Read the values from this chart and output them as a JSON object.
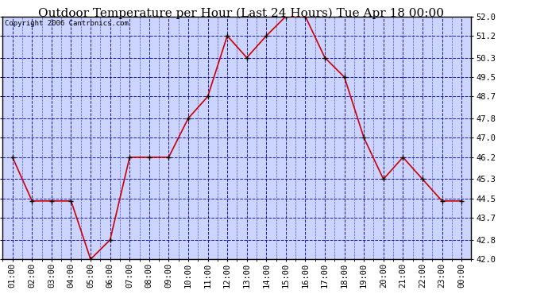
{
  "title": "Outdoor Temperature per Hour (Last 24 Hours) Tue Apr 18 00:00",
  "copyright_text": "Copyright 2006 Cantronics.com",
  "x_labels": [
    "01:00",
    "02:00",
    "03:00",
    "04:00",
    "05:00",
    "06:00",
    "07:00",
    "08:00",
    "09:00",
    "10:00",
    "11:00",
    "12:00",
    "13:00",
    "14:00",
    "15:00",
    "16:00",
    "17:00",
    "18:00",
    "19:00",
    "20:00",
    "21:00",
    "22:00",
    "23:00",
    "00:00"
  ],
  "y_values": [
    46.2,
    44.4,
    44.4,
    44.4,
    42.0,
    42.8,
    46.2,
    46.2,
    46.2,
    47.8,
    48.7,
    51.2,
    50.3,
    51.2,
    52.0,
    52.0,
    50.3,
    49.5,
    47.0,
    45.3,
    46.2,
    45.3,
    44.4,
    44.4
  ],
  "ylim_min": 42.0,
  "ylim_max": 52.0,
  "y_ticks": [
    42.0,
    42.8,
    43.7,
    44.5,
    45.3,
    46.2,
    47.0,
    47.8,
    48.7,
    49.5,
    50.3,
    51.2,
    52.0
  ],
  "line_color": "#cc0000",
  "marker_color": "#000000",
  "bg_color": "#ccd5ff",
  "grid_color": "#0000bb",
  "border_color": "#000000",
  "title_fontsize": 11,
  "tick_fontsize": 7.5,
  "copyright_fontsize": 6.5
}
